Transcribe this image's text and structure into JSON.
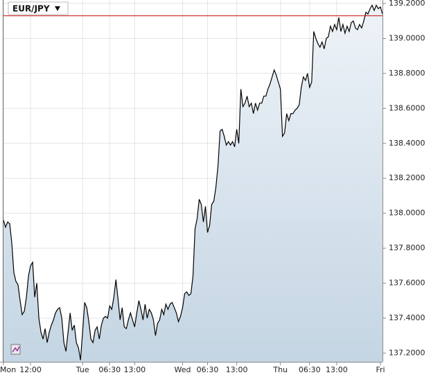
{
  "chart_data": {
    "type": "area-line",
    "title": "EUR/JPY",
    "categories": [
      "Mon",
      null,
      null,
      null,
      null,
      null,
      null,
      null,
      null,
      null,
      null,
      null,
      null,
      "12:00",
      null,
      null,
      null,
      null,
      null,
      null,
      null,
      null,
      null,
      null,
      null,
      null,
      null,
      null,
      null,
      null,
      null,
      null,
      null,
      null,
      null,
      null,
      null,
      null,
      "Tue",
      null,
      null,
      null,
      null,
      null,
      null,
      null,
      null,
      null,
      null,
      null,
      null,
      "06:30",
      null,
      null,
      null,
      null,
      null,
      null,
      null,
      null,
      null,
      null,
      null,
      "13:00",
      null,
      null,
      null,
      null,
      null,
      null,
      null,
      null,
      null,
      null,
      null,
      null,
      null,
      null,
      null,
      null,
      null,
      null,
      null,
      null,
      null,
      null,
      "Wed",
      null,
      null,
      null,
      null,
      null,
      null,
      null,
      null,
      null,
      null,
      null,
      "06:30",
      null,
      null,
      null,
      null,
      null,
      null,
      null,
      null,
      null,
      null,
      null,
      null,
      null,
      "13:00",
      null,
      null,
      null,
      null,
      null,
      null,
      null,
      null,
      null,
      null,
      null,
      null,
      null,
      null,
      null,
      null,
      null,
      null,
      null,
      null,
      "Thu",
      null,
      null,
      null,
      null,
      null,
      null,
      null,
      null,
      null,
      null,
      null,
      null,
      null,
      "06:30",
      null,
      null,
      null,
      null,
      null,
      null,
      null,
      null,
      null,
      null,
      null,
      null,
      "13:00",
      null,
      null,
      null,
      null,
      null,
      null,
      null,
      null,
      null,
      null,
      null,
      null,
      null,
      null,
      null,
      null,
      null,
      null,
      null,
      null,
      "Fri",
      null
    ],
    "values": [
      137.96,
      137.92,
      137.95,
      137.94,
      137.83,
      137.66,
      137.61,
      137.59,
      137.5,
      137.42,
      137.44,
      137.52,
      137.64,
      137.7,
      137.72,
      137.52,
      137.6,
      137.4,
      137.32,
      137.28,
      137.34,
      137.26,
      137.32,
      137.36,
      137.39,
      137.43,
      137.45,
      137.46,
      137.4,
      137.26,
      137.21,
      137.32,
      137.43,
      137.33,
      137.36,
      137.26,
      137.23,
      137.16,
      137.32,
      137.49,
      137.46,
      137.38,
      137.28,
      137.26,
      137.33,
      137.35,
      137.28,
      137.36,
      137.4,
      137.41,
      137.4,
      137.47,
      137.45,
      137.52,
      137.62,
      137.51,
      137.39,
      137.46,
      137.35,
      137.34,
      137.39,
      137.43,
      137.39,
      137.35,
      137.43,
      137.5,
      137.45,
      137.39,
      137.48,
      137.4,
      137.45,
      137.43,
      137.39,
      137.3,
      137.37,
      137.39,
      137.45,
      137.42,
      137.48,
      137.45,
      137.48,
      137.49,
      137.46,
      137.43,
      137.38,
      137.41,
      137.46,
      137.54,
      137.55,
      137.53,
      137.54,
      137.64,
      137.91,
      137.97,
      138.08,
      138.05,
      137.95,
      138.04,
      137.89,
      137.93,
      138.05,
      138.07,
      138.15,
      138.27,
      138.47,
      138.48,
      138.44,
      138.39,
      138.41,
      138.39,
      138.41,
      138.38,
      138.48,
      138.4,
      138.71,
      138.61,
      138.63,
      138.67,
      138.61,
      138.63,
      138.57,
      138.63,
      138.59,
      138.63,
      138.63,
      138.67,
      138.67,
      138.71,
      138.74,
      138.78,
      138.82,
      138.79,
      138.75,
      138.71,
      138.44,
      138.46,
      138.57,
      138.53,
      138.57,
      138.57,
      138.59,
      138.6,
      138.62,
      138.72,
      138.78,
      138.76,
      138.8,
      138.72,
      138.75,
      139.04,
      139.0,
      138.97,
      138.95,
      138.98,
      138.94,
      139.0,
      139.01,
      139.07,
      139.04,
      139.08,
      139.05,
      139.12,
      139.04,
      139.08,
      139.03,
      139.07,
      139.04,
      139.09,
      139.1,
      139.06,
      139.05,
      139.08,
      139.06,
      139.1,
      139.15,
      139.14,
      139.17,
      139.19,
      139.16,
      139.19,
      139.17,
      139.18,
      139.14
    ],
    "color": "#000000",
    "fill": "#c9d9e6",
    "ylim": [
      137.15,
      139.22
    ],
    "yticks": [
      {
        "value": 137.2,
        "label": "137.2000"
      },
      {
        "value": 137.4,
        "label": "137.4000"
      },
      {
        "value": 137.6,
        "label": "137.6000"
      },
      {
        "value": 137.8,
        "label": "137.8000"
      },
      {
        "value": 138.0,
        "label": "138.0000"
      },
      {
        "value": 138.2,
        "label": "138.2000"
      },
      {
        "value": 138.4,
        "label": "138.4000"
      },
      {
        "value": 138.6,
        "label": "138.6000"
      },
      {
        "value": 138.8,
        "label": "138.8000"
      },
      {
        "value": 139.0,
        "label": "139.0000"
      },
      {
        "value": 139.2,
        "label": "139.2000"
      }
    ],
    "reference_line": {
      "value": 139.13,
      "color": "#cc0000"
    },
    "grid": true
  }
}
